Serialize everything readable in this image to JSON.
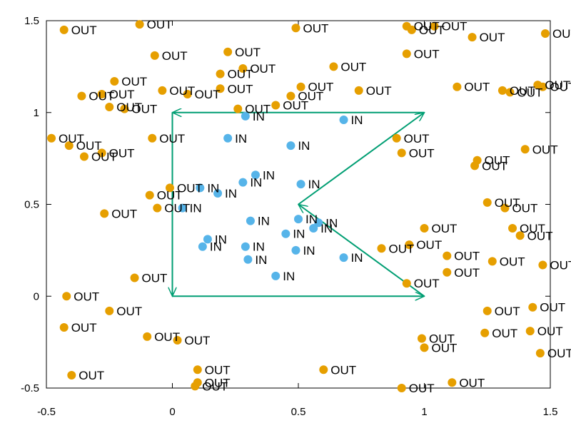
{
  "chart_data": {
    "type": "scatter",
    "title": "",
    "xlabel": "",
    "ylabel": "",
    "xlim": [
      -0.5,
      1.5
    ],
    "ylim": [
      -0.5,
      1.5
    ],
    "xticks": [
      -0.5,
      0,
      0.5,
      1,
      1.5
    ],
    "yticks": [
      -0.5,
      0,
      0.5,
      1,
      1.5
    ],
    "xtick_labels": [
      "-0.5",
      "0",
      "0.5",
      "1",
      "1.5"
    ],
    "ytick_labels": [
      "-0.5",
      "0",
      "0.5",
      "1",
      "1.5"
    ],
    "grid": false,
    "polygon": {
      "color": "#009e73",
      "arrowheads": true,
      "vertices": [
        [
          0,
          1
        ],
        [
          0,
          0
        ],
        [
          1,
          0
        ],
        [
          0.5,
          0.5
        ],
        [
          1,
          1
        ],
        [
          0,
          1
        ]
      ]
    },
    "series": [
      {
        "label": "IN",
        "color": "#56b4e9",
        "points": [
          [
            0.29,
            0.98
          ],
          [
            0.68,
            0.96
          ],
          [
            0.22,
            0.86
          ],
          [
            0.47,
            0.82
          ],
          [
            0.33,
            0.66
          ],
          [
            0.28,
            0.62
          ],
          [
            0.51,
            0.61
          ],
          [
            0.11,
            0.59
          ],
          [
            0.18,
            0.56
          ],
          [
            0.04,
            0.48
          ],
          [
            0.31,
            0.41
          ],
          [
            0.5,
            0.42
          ],
          [
            0.58,
            0.4
          ],
          [
            0.56,
            0.37
          ],
          [
            0.45,
            0.34
          ],
          [
            0.14,
            0.31
          ],
          [
            0.12,
            0.27
          ],
          [
            0.29,
            0.27
          ],
          [
            0.49,
            0.25
          ],
          [
            0.3,
            0.2
          ],
          [
            0.68,
            0.21
          ],
          [
            0.41,
            0.11
          ]
        ]
      },
      {
        "label": "OUT",
        "color": "#e69f00",
        "points": [
          [
            -0.43,
            1.45
          ],
          [
            -0.13,
            1.48
          ],
          [
            0.49,
            1.46
          ],
          [
            0.93,
            1.47
          ],
          [
            0.95,
            1.45
          ],
          [
            1.04,
            1.47
          ],
          [
            1.19,
            1.41
          ],
          [
            1.48,
            1.43
          ],
          [
            -0.07,
            1.31
          ],
          [
            0.22,
            1.33
          ],
          [
            0.93,
            1.32
          ],
          [
            0.19,
            1.21
          ],
          [
            0.28,
            1.24
          ],
          [
            0.64,
            1.25
          ],
          [
            -0.23,
            1.17
          ],
          [
            -0.36,
            1.09
          ],
          [
            -0.28,
            1.1
          ],
          [
            -0.04,
            1.12
          ],
          [
            0.06,
            1.1
          ],
          [
            0.19,
            1.13
          ],
          [
            0.51,
            1.14
          ],
          [
            0.47,
            1.09
          ],
          [
            0.74,
            1.12
          ],
          [
            1.13,
            1.14
          ],
          [
            1.31,
            1.12
          ],
          [
            1.34,
            1.11
          ],
          [
            1.45,
            1.15
          ],
          [
            1.47,
            1.14
          ],
          [
            -0.25,
            1.03
          ],
          [
            -0.19,
            1.02
          ],
          [
            0.26,
            1.02
          ],
          [
            0.41,
            1.04
          ],
          [
            -0.48,
            0.86
          ],
          [
            -0.41,
            0.82
          ],
          [
            -0.35,
            0.76
          ],
          [
            -0.28,
            0.78
          ],
          [
            -0.08,
            0.86
          ],
          [
            0.89,
            0.86
          ],
          [
            0.91,
            0.78
          ],
          [
            1.21,
            0.74
          ],
          [
            1.2,
            0.71
          ],
          [
            1.4,
            0.8
          ],
          [
            -0.01,
            0.59
          ],
          [
            -0.09,
            0.55
          ],
          [
            -0.06,
            0.48
          ],
          [
            -0.27,
            0.45
          ],
          [
            1.25,
            0.51
          ],
          [
            1.32,
            0.48
          ],
          [
            1.0,
            0.37
          ],
          [
            1.35,
            0.37
          ],
          [
            1.38,
            0.33
          ],
          [
            0.83,
            0.26
          ],
          [
            0.94,
            0.28
          ],
          [
            1.09,
            0.22
          ],
          [
            1.27,
            0.19
          ],
          [
            1.47,
            0.17
          ],
          [
            -0.15,
            0.1
          ],
          [
            0.93,
            0.07
          ],
          [
            1.09,
            0.13
          ],
          [
            -0.42,
            0.0
          ],
          [
            -0.25,
            -0.08
          ],
          [
            1.25,
            -0.08
          ],
          [
            1.43,
            -0.06
          ],
          [
            -0.43,
            -0.17
          ],
          [
            -0.1,
            -0.22
          ],
          [
            0.02,
            -0.24
          ],
          [
            0.99,
            -0.23
          ],
          [
            1.0,
            -0.28
          ],
          [
            1.24,
            -0.2
          ],
          [
            1.42,
            -0.19
          ],
          [
            1.46,
            -0.31
          ],
          [
            -0.4,
            -0.43
          ],
          [
            0.1,
            -0.4
          ],
          [
            0.6,
            -0.4
          ],
          [
            0.1,
            -0.47
          ],
          [
            0.09,
            -0.49
          ],
          [
            0.91,
            -0.5
          ],
          [
            1.11,
            -0.47
          ]
        ]
      }
    ]
  }
}
